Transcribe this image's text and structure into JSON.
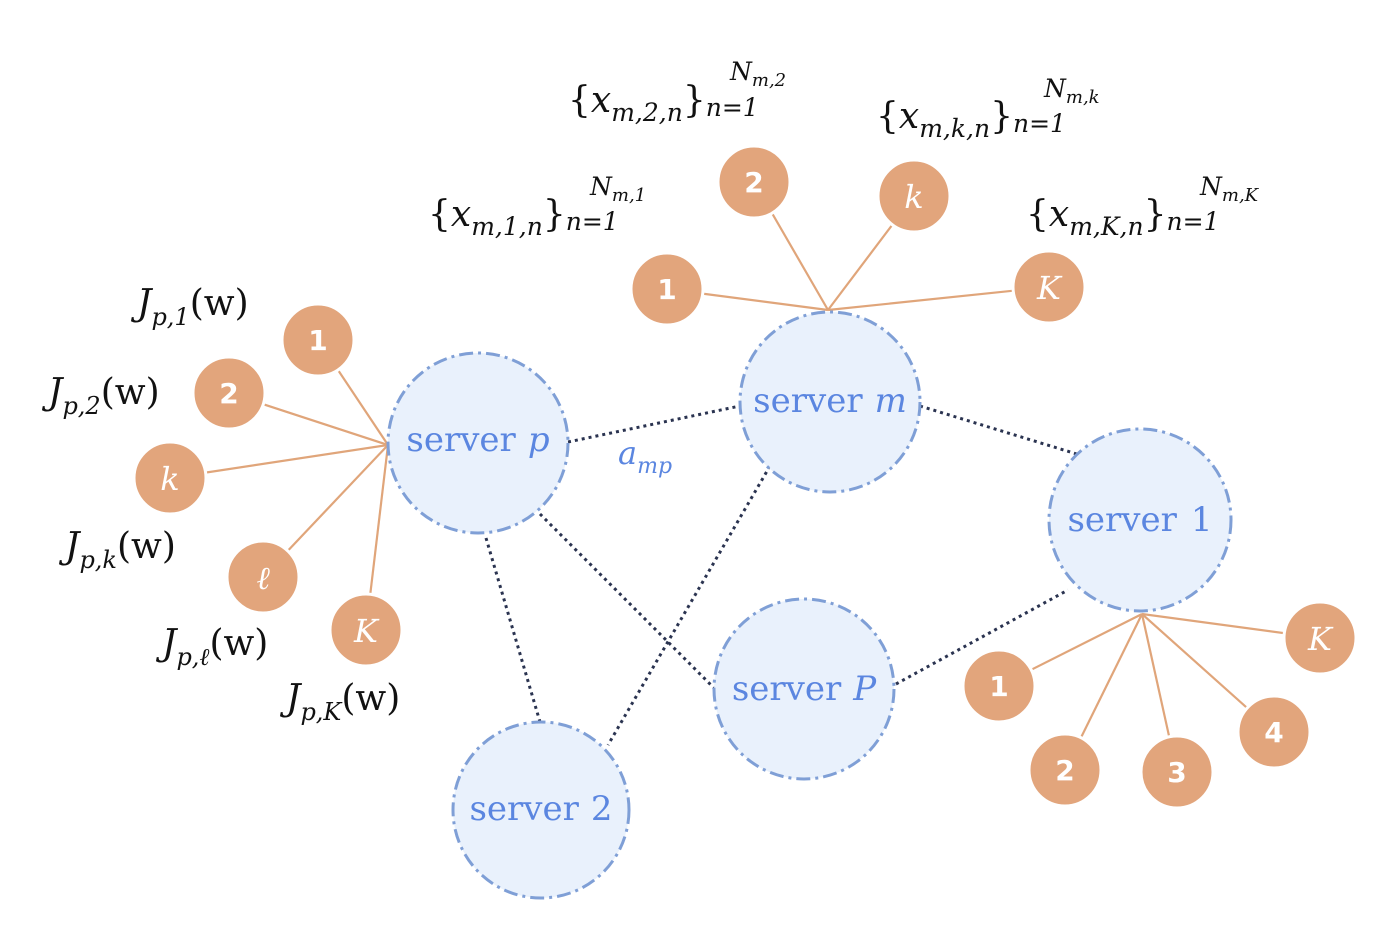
{
  "servers": {
    "p": {
      "word": "server",
      "id": "p"
    },
    "m": {
      "word": "server",
      "id": "m"
    },
    "one": {
      "word": "server",
      "id": "1"
    },
    "P": {
      "word": "server",
      "id": "P"
    },
    "two": {
      "word": "server",
      "id": "2"
    }
  },
  "edge_label": {
    "main": "a",
    "sub": "mp"
  },
  "clients_p": [
    "1",
    "2",
    "k",
    "ℓ",
    "K"
  ],
  "clients_m": [
    "1",
    "2",
    "k",
    "K"
  ],
  "clients_1": [
    "1",
    "2",
    "3",
    "4",
    "K"
  ],
  "labels_p": [
    {
      "J": "J",
      "sub": "p,1",
      "arg": "(w)"
    },
    {
      "J": "J",
      "sub": "p,2",
      "arg": "(w)"
    },
    {
      "J": "J",
      "sub": "p,k",
      "arg": "(w)"
    },
    {
      "J": "J",
      "sub": "p,ℓ",
      "arg": "(w)"
    },
    {
      "J": "J",
      "sub": "p,K",
      "arg": "(w)"
    }
  ],
  "labels_m": [
    {
      "open": "{",
      "x": "x",
      "sub": "m,1,n",
      "close": "}",
      "lower": "n=1",
      "upper": "N",
      "upper_sub": "m,1"
    },
    {
      "open": "{",
      "x": "x",
      "sub": "m,2,n",
      "close": "}",
      "lower": "n=1",
      "upper": "N",
      "upper_sub": "m,2"
    },
    {
      "open": "{",
      "x": "x",
      "sub": "m,k,n",
      "close": "}",
      "lower": "n=1",
      "upper": "N",
      "upper_sub": "m,k"
    },
    {
      "open": "{",
      "x": "x",
      "sub": "m,K,n",
      "close": "}",
      "lower": "n=1",
      "upper": "N",
      "upper_sub": "m,K"
    }
  ]
}
